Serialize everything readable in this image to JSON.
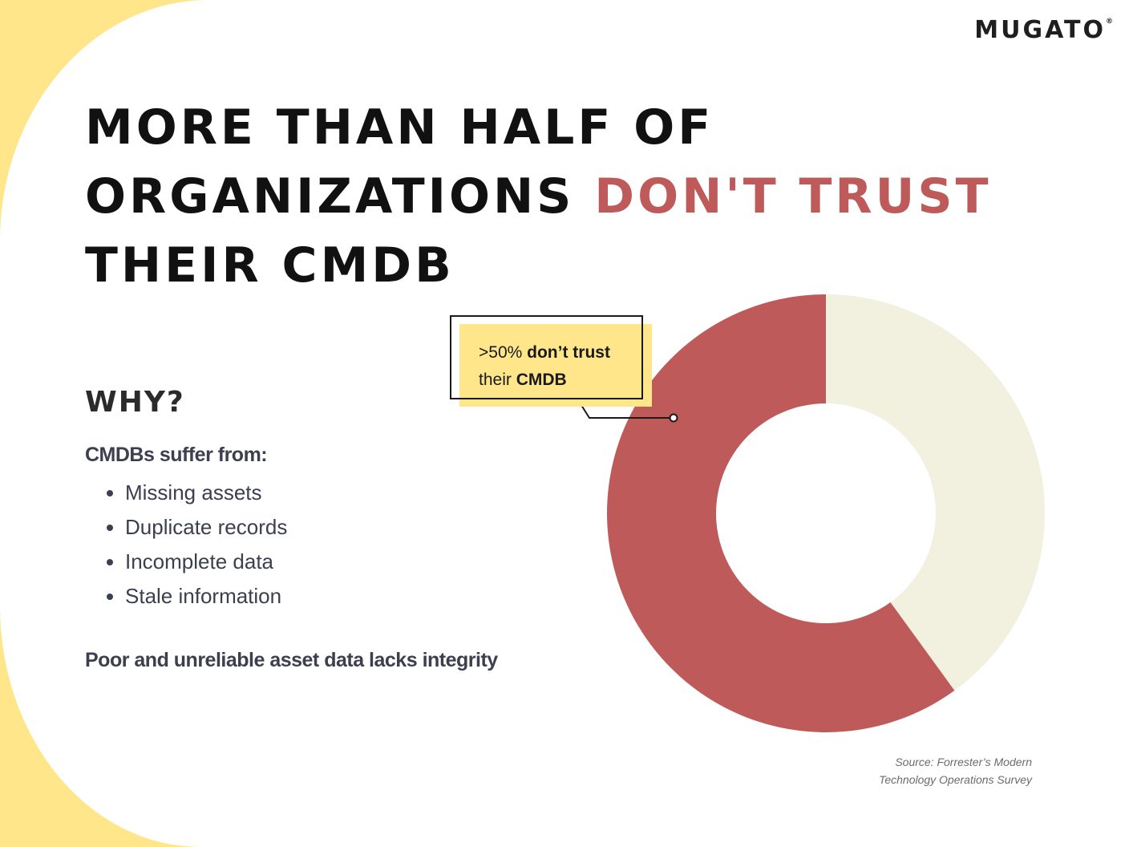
{
  "brand": {
    "logo_text": "MUGATO",
    "logo_mark": "®"
  },
  "headline": {
    "line1": "MORE THAN HALF OF",
    "line2_prefix": "ORGANIZATIONS ",
    "line2_accent": "DON'T TRUST",
    "line3": "THEIR CMDB"
  },
  "why": {
    "heading": "WHY?",
    "intro": "CMDBs suffer from:",
    "reasons": [
      "Missing assets",
      "Duplicate records",
      "Incomplete data",
      "Stale information"
    ],
    "conclusion": "Poor and unreliable asset data lacks integrity"
  },
  "callout": {
    "pre": ">50% ",
    "bold1": "don’t trust",
    "mid": "their ",
    "bold2": "CMDB"
  },
  "source": {
    "line1": "Source: Forrester’s Modern",
    "line2": "Technology Operations Survey"
  },
  "colors": {
    "accent": "#BF5A5A",
    "cream": "#F2F0DF",
    "yellow": "#FFE68A",
    "text": "#3B3F4F"
  },
  "chart_data": {
    "type": "pie",
    "donut": true,
    "title": "",
    "slices": [
      {
        "label": "don’t trust their CMDB",
        "value": 60,
        "color": "#BF5A5A"
      },
      {
        "label": "",
        "value": 40,
        "color": "#F2F0DF"
      }
    ],
    "legend": "none"
  }
}
